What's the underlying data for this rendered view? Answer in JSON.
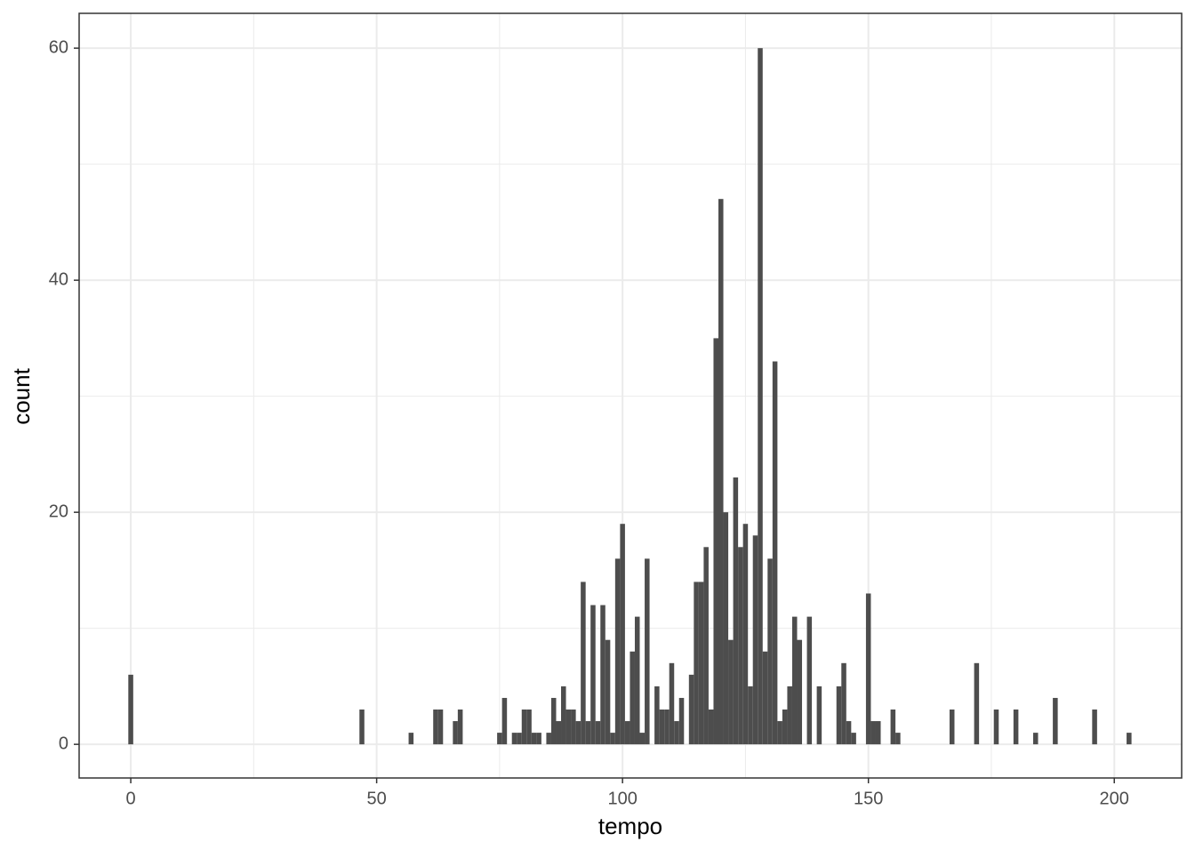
{
  "chart_data": {
    "type": "histogram",
    "x_label": "tempo",
    "y_label": "count",
    "color": "#4d4d4d",
    "bins": [
      -0.5,
      0.5,
      1.5,
      2.5,
      3.5,
      4.5,
      5.5,
      6.5,
      7.5,
      8.5,
      9.5,
      10.5,
      11.5,
      12.5,
      13.5,
      14.5,
      15.5,
      16.5,
      17.5,
      18.5,
      19.5,
      20.5,
      21.5,
      22.5,
      23.5,
      24.5,
      25.5,
      26.5,
      27.5,
      28.5,
      29.5,
      30.5,
      31.5,
      32.5,
      33.5,
      34.5,
      35.5,
      36.5,
      37.5,
      38.5,
      39.5,
      40.5,
      41.5,
      42.5,
      43.5,
      44.5,
      45.5,
      46.5,
      47.5,
      48.5,
      49.5,
      50.5,
      51.5,
      52.5,
      53.5,
      54.5,
      55.5,
      56.5,
      57.5,
      58.5,
      59.5,
      60.5,
      61.5,
      62.5,
      63.5,
      64.5,
      65.5,
      66.5,
      67.5,
      68.5,
      69.5,
      70.5,
      71.5,
      72.5,
      73.5,
      74.5,
      75.5,
      76.5,
      77.5,
      78.5,
      79.5,
      80.5,
      81.5,
      82.5,
      83.5,
      84.5,
      85.5,
      86.5,
      87.5,
      88.5,
      89.5,
      90.5,
      91.5,
      92.5,
      93.5,
      94.5,
      95.5,
      96.5,
      97.5,
      98.5,
      99.5,
      100.5,
      101.5,
      102.5,
      103.5,
      104.5,
      105.5,
      106.5,
      107.5,
      108.5,
      109.5,
      110.5,
      111.5,
      112.5,
      113.5,
      114.5,
      115.5,
      116.5,
      117.5,
      118.5,
      119.5,
      120.5,
      121.5,
      122.5,
      123.5,
      124.5,
      125.5,
      126.5,
      127.5,
      128.5,
      129.5,
      130.5,
      131.5,
      132.5,
      133.5,
      134.5,
      135.5,
      136.5,
      137.5,
      138.5,
      139.5,
      140.5,
      141.5,
      142.5,
      143.5,
      144.5,
      145.5,
      146.5,
      147.5,
      148.5,
      149.5,
      150.5,
      151.5,
      152.5,
      153.5,
      154.5,
      155.5,
      156.5,
      157.5,
      158.5,
      159.5,
      160.5,
      161.5,
      162.5,
      163.5,
      164.5,
      165.5,
      166.5,
      167.5,
      168.5,
      169.5,
      170.5,
      171.5,
      172.5,
      173.5,
      174.5,
      175.5,
      176.5,
      177.5,
      178.5,
      179.5,
      180.5,
      181.5,
      182.5,
      183.5,
      184.5,
      185.5,
      186.5,
      187.5,
      188.5,
      189.5,
      190.5,
      191.5,
      192.5,
      193.5,
      194.5,
      195.5,
      196.5,
      197.5,
      198.5,
      199.5,
      200.5,
      201.5,
      202.5,
      203.5
    ],
    "counts": [
      6,
      0,
      0,
      0,
      0,
      0,
      0,
      0,
      0,
      0,
      0,
      0,
      0,
      0,
      0,
      0,
      0,
      0,
      0,
      0,
      0,
      0,
      0,
      0,
      0,
      0,
      0,
      0,
      0,
      0,
      0,
      0,
      0,
      0,
      0,
      0,
      0,
      0,
      0,
      0,
      0,
      0,
      0,
      0,
      0,
      0,
      0,
      3,
      0,
      0,
      0,
      0,
      0,
      0,
      0,
      0,
      0,
      1,
      0,
      0,
      0,
      0,
      3,
      3,
      0,
      0,
      2,
      3,
      0,
      0,
      0,
      0,
      0,
      0,
      0,
      1,
      4,
      0,
      1,
      1,
      3,
      3,
      1,
      1,
      0,
      1,
      4,
      2,
      5,
      3,
      3,
      2,
      14,
      2,
      12,
      2,
      12,
      9,
      1,
      16,
      19,
      2,
      8,
      11,
      1,
      16,
      0,
      5,
      3,
      3,
      7,
      2,
      4,
      0,
      6,
      14,
      14,
      17,
      3,
      35,
      47,
      20,
      9,
      23,
      17,
      19,
      5,
      18,
      60,
      8,
      16,
      33,
      2,
      3,
      5,
      11,
      9,
      0,
      11,
      0,
      5,
      0,
      0,
      0,
      5,
      7,
      2,
      1,
      0,
      0,
      13,
      2,
      2,
      0,
      0,
      3,
      1,
      0,
      0,
      0,
      0,
      0,
      0,
      0,
      0,
      0,
      0,
      3,
      0,
      0,
      0,
      0,
      7,
      0,
      0,
      0,
      3,
      0,
      0,
      0,
      3,
      0,
      0,
      0,
      1,
      0,
      0,
      0,
      4,
      0,
      0,
      0,
      0,
      0,
      0,
      0,
      3,
      0,
      0,
      0,
      0,
      0,
      0,
      1
    ],
    "xlim": [
      -10.5,
      213.7
    ],
    "ylim": [
      -2.9,
      63
    ],
    "xticks": [
      0,
      50,
      100,
      150,
      200
    ],
    "yticks": [
      0,
      20,
      40,
      60
    ],
    "grid": true
  }
}
